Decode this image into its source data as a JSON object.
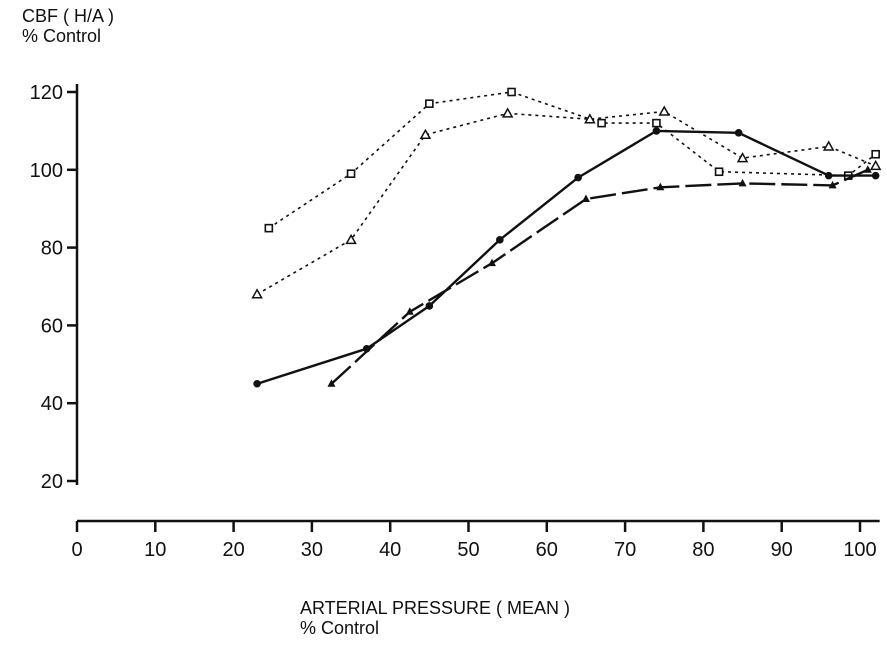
{
  "chart_data": {
    "type": "line",
    "title": "",
    "ylabel_lines": [
      "CBF ( H/A )",
      "% Control"
    ],
    "xlabel_lines": [
      "ARTERIAL PRESSURE ( MEAN )",
      "% Control"
    ],
    "xlim": [
      0,
      102
    ],
    "ylim": [
      20,
      120
    ],
    "xticks": [
      0,
      10,
      20,
      30,
      40,
      50,
      60,
      70,
      80,
      90,
      100
    ],
    "yticks": [
      20,
      40,
      60,
      80,
      100,
      120
    ],
    "grid": false,
    "legend": "none",
    "series": [
      {
        "marker": "open-square",
        "line": "dotted",
        "color": "#111111",
        "points": [
          [
            24.5,
            85
          ],
          [
            35,
            99
          ],
          [
            45,
            117
          ],
          [
            55.5,
            120
          ],
          [
            67,
            112
          ],
          [
            74,
            112
          ],
          [
            82,
            99.5
          ],
          [
            98.5,
            98.5
          ],
          [
            102,
            104
          ]
        ]
      },
      {
        "marker": "open-triangle",
        "line": "dotted",
        "color": "#111111",
        "points": [
          [
            23,
            68
          ],
          [
            35,
            82
          ],
          [
            44.5,
            109
          ],
          [
            55,
            114.5
          ],
          [
            65.5,
            113
          ],
          [
            75,
            115
          ],
          [
            85,
            103
          ],
          [
            96,
            106
          ],
          [
            102,
            101
          ]
        ]
      },
      {
        "marker": "filled-circle",
        "line": "solid",
        "color": "#111111",
        "points": [
          [
            23,
            45
          ],
          [
            37,
            54
          ],
          [
            45,
            65
          ],
          [
            54,
            82
          ],
          [
            64,
            98
          ],
          [
            74,
            110
          ],
          [
            84.5,
            109.5
          ],
          [
            96,
            98.5
          ],
          [
            102,
            98.5
          ]
        ]
      },
      {
        "marker": "filled-triangle",
        "line": "dashed-solid",
        "color": "#111111",
        "points": [
          [
            32.5,
            45
          ],
          [
            42.5,
            63.5
          ],
          [
            53,
            76
          ],
          [
            65,
            92.5
          ],
          [
            74.5,
            95.5
          ],
          [
            85,
            96.5
          ],
          [
            96.5,
            96
          ],
          [
            101,
            100
          ]
        ]
      }
    ]
  }
}
